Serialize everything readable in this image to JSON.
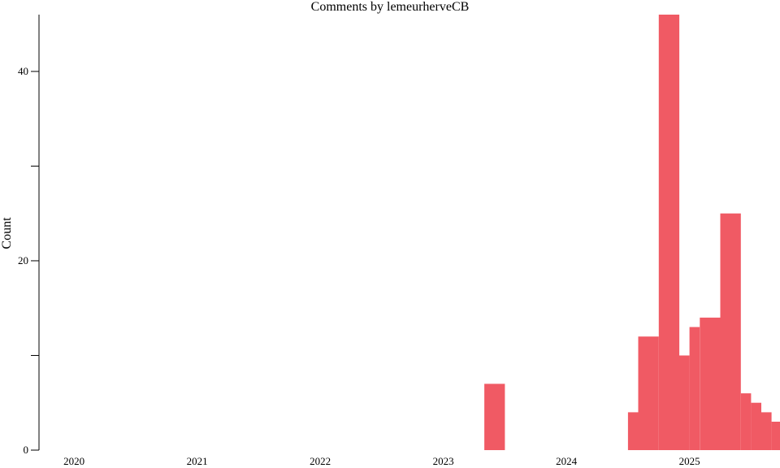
{
  "chart_data": {
    "type": "bar",
    "title": "Comments by lemeurherveCB",
    "xlabel": "",
    "ylabel": "Count",
    "x_tick_labels": [
      "2020",
      "2021",
      "2022",
      "2023",
      "2024",
      "2025"
    ],
    "y_ticks": [
      0,
      10,
      20,
      30,
      40
    ],
    "y_tick_labels": [
      "0",
      "",
      "20",
      "",
      "40"
    ],
    "ylim": [
      0,
      46
    ],
    "xlim": [
      2019.9,
      2025.85
    ],
    "bar_color": "#f05a64",
    "grid": false,
    "legend": "none",
    "bars": [
      {
        "start": "2023-05",
        "end": "2023-07",
        "value": 7
      },
      {
        "start": "2024-07",
        "end": "2024-08",
        "value": 4
      },
      {
        "start": "2024-08",
        "end": "2024-10",
        "value": 12
      },
      {
        "start": "2024-10",
        "end": "2024-12",
        "value": 46
      },
      {
        "start": "2024-12",
        "end": "2025-01",
        "value": 10
      },
      {
        "start": "2025-01",
        "end": "2025-02",
        "value": 13
      },
      {
        "start": "2025-02",
        "end": "2025-04",
        "value": 14
      },
      {
        "start": "2025-04",
        "end": "2025-06",
        "value": 25
      },
      {
        "start": "2025-06",
        "end": "2025-07",
        "value": 6
      },
      {
        "start": "2025-07",
        "end": "2025-08",
        "value": 5
      },
      {
        "start": "2025-08",
        "end": "2025-09",
        "value": 4
      },
      {
        "start": "2025-09",
        "end": "2025-11",
        "value": 3
      }
    ]
  }
}
